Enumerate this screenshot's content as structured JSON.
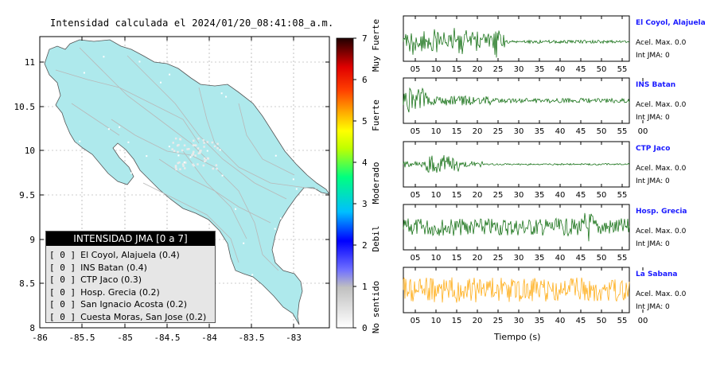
{
  "title": "Intensidad calculada el 2024/01/20_08:41:08_a.m.",
  "map": {
    "x_ticks": [
      "-86",
      "-85.5",
      "-85",
      "-84.5",
      "-84",
      "-83.5",
      "-83"
    ],
    "y_ticks": [
      "11",
      "10.5",
      "10",
      "9.5",
      "9",
      "8.5",
      "8"
    ],
    "land_color": "#aee9ec",
    "road_color": "#b8b8b8"
  },
  "legend": {
    "header": "INTENSIDAD JMA [0 a 7]",
    "items": [
      {
        "level": "[ 0 ]",
        "label": "El Coyol, Alajuela (0.4)"
      },
      {
        "level": "[ 0 ]",
        "label": "INS Batan (0.4)"
      },
      {
        "level": "[ 0 ]",
        "label": "CTP Jaco (0.3)"
      },
      {
        "level": "[ 0 ]",
        "label": "Hosp. Grecia (0.2)"
      },
      {
        "level": "[ 0 ]",
        "label": "San Ignacio Acosta (0.2)"
      },
      {
        "level": "[ 0 ]",
        "label": "Cuesta Moras, San Jose (0.2)"
      }
    ]
  },
  "colorbar": {
    "ticks": [
      "0",
      "1",
      "2",
      "3",
      "4",
      "5",
      "6",
      "7"
    ],
    "labels": [
      "No sentido",
      "Debil",
      "Moderado",
      "Fuerte",
      "Muy Fuerte"
    ]
  },
  "stations": [
    {
      "name": "El Coyol, Alajuela",
      "acc": "Acel. Max. 0.0",
      "int": "Int JMA: 0",
      "color": "#006400",
      "ticks": [
        "05",
        "10",
        "15",
        "20",
        "25",
        "30",
        "35",
        "40",
        "45",
        "50",
        "55"
      ]
    },
    {
      "name": "INS Batan",
      "acc": "Acel. Max. 0.0",
      "int": "Int JMA: 0",
      "color": "#006400",
      "ticks": [
        "05",
        "10",
        "15",
        "20",
        "25",
        "30",
        "35",
        "40",
        "45",
        "50",
        "55",
        "00"
      ]
    },
    {
      "name": "CTP Jaco",
      "acc": "Acel. Max. 0.0",
      "int": "Int JMA: 0",
      "color": "#006400",
      "ticks": [
        "05",
        "10",
        "15",
        "20",
        "25",
        "30",
        "35",
        "40",
        "45",
        "50",
        "55"
      ]
    },
    {
      "name": "Hosp. Grecia",
      "acc": "Acel. Max. 0.0",
      "int": "Int JMA: 0",
      "color": "#006400",
      "ticks": [
        "05",
        "10",
        "15",
        "20",
        "25",
        "30",
        "35",
        "40",
        "45",
        "50",
        "55"
      ]
    },
    {
      "name": "La Sabana",
      "acc": "Acel. Max. 0.0",
      "int": "Int JMA: 0",
      "color": "#ffa500",
      "ticks": [
        "05",
        "10",
        "15",
        "20",
        "25",
        "30",
        "35",
        "40",
        "45",
        "50",
        "55",
        "00"
      ]
    }
  ],
  "waveform_xlabel": "Tiempo (s)"
}
